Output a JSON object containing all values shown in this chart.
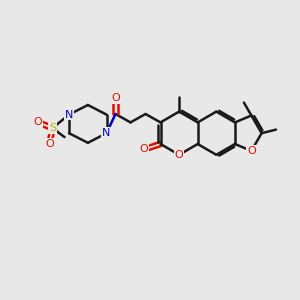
{
  "background_color": "#e8e8e8",
  "bond_color": "#1a1a1a",
  "bond_width": 1.8,
  "atom_colors": {
    "O": "#dd1100",
    "N": "#0000cc",
    "S": "#bbbb00",
    "C": "#1a1a1a"
  },
  "figsize": [
    3.0,
    3.0
  ],
  "dpi": 100
}
